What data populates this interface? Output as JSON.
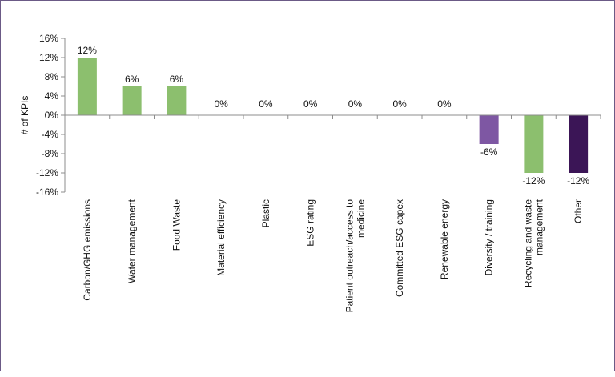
{
  "chart_data": {
    "type": "bar",
    "title": "",
    "xlabel": "",
    "ylabel": "# of KPIs",
    "ylim": [
      -16,
      16
    ],
    "yticks": [
      16,
      12,
      8,
      4,
      0,
      -4,
      -8,
      -12,
      -16
    ],
    "ytick_labels": [
      "16%",
      "12%",
      "8%",
      "4%",
      "0%",
      "-4%",
      "-8%",
      "-12%",
      "-16%"
    ],
    "grid": false,
    "categories": [
      [
        "Carbon/GHG emissions"
      ],
      [
        "Water management"
      ],
      [
        "Food Waste"
      ],
      [
        "Material efficiency"
      ],
      [
        "Plastic"
      ],
      [
        "ESG rating"
      ],
      [
        "Patient outreach/access to",
        "medicine"
      ],
      [
        "Committed ESG capex"
      ],
      [
        "Renewable energy"
      ],
      [
        "Diversity / training"
      ],
      [
        "Recycling and waste",
        "management"
      ],
      [
        "Other"
      ]
    ],
    "values": [
      12,
      6,
      6,
      0,
      0,
      0,
      0,
      0,
      0,
      -6,
      -12,
      -12
    ],
    "data_labels": [
      "12%",
      "6%",
      "6%",
      "0%",
      "0%",
      "0%",
      "0%",
      "0%",
      "0%",
      "-6%",
      "-12%",
      "-12%"
    ],
    "bar_colors": [
      "#8cbf6e",
      "#8cbf6e",
      "#8cbf6e",
      "#8cbf6e",
      "#8cbf6e",
      "#8cbf6e",
      "#8cbf6e",
      "#8cbf6e",
      "#8cbf6e",
      "#7e57a3",
      "#8cbf6e",
      "#3b1556"
    ]
  }
}
